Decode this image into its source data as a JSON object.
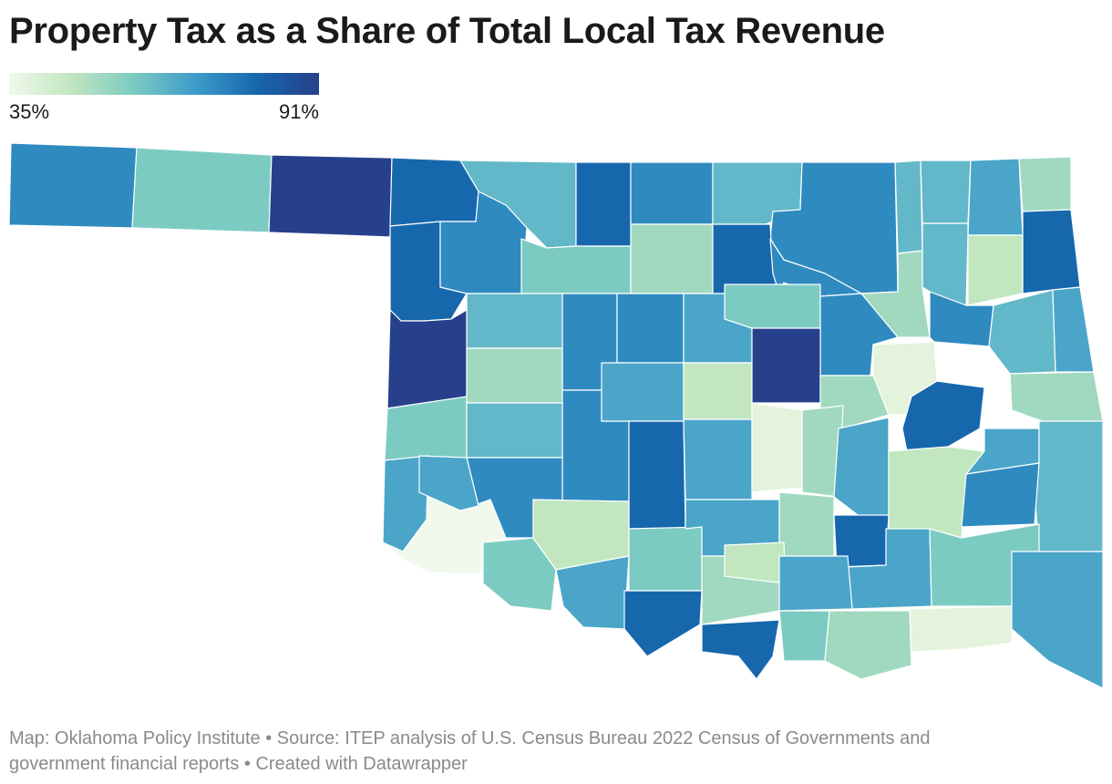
{
  "title": "Property Tax as a Share of Total Local Tax Revenue",
  "legend": {
    "min_label": "35%",
    "max_label": "91%",
    "colors": [
      "#f1f9ec",
      "#c1e6c0",
      "#7ccbc2",
      "#3d9cc9",
      "#1767ad",
      "#26408b"
    ]
  },
  "map": {
    "region": "Oklahoma counties",
    "colors": {
      "darkest": "#26408b",
      "dark": "#1767ad",
      "mid_dark": "#2f8ac0",
      "mid": "#4aa5c9",
      "teal": "#62b8c9",
      "light_teal": "#7ccbc2",
      "mint": "#a0d9c0",
      "light_green": "#c1e6c0",
      "pale": "#e4f3dc",
      "palest": "#f1f9ec"
    }
  },
  "footer": {
    "line1": "Map: Oklahoma Policy Institute • Source: ITEP analysis of U.S. Census Bureau 2022 Census of Governments and",
    "line2": "government financial reports  • Created with Datawrapper"
  }
}
